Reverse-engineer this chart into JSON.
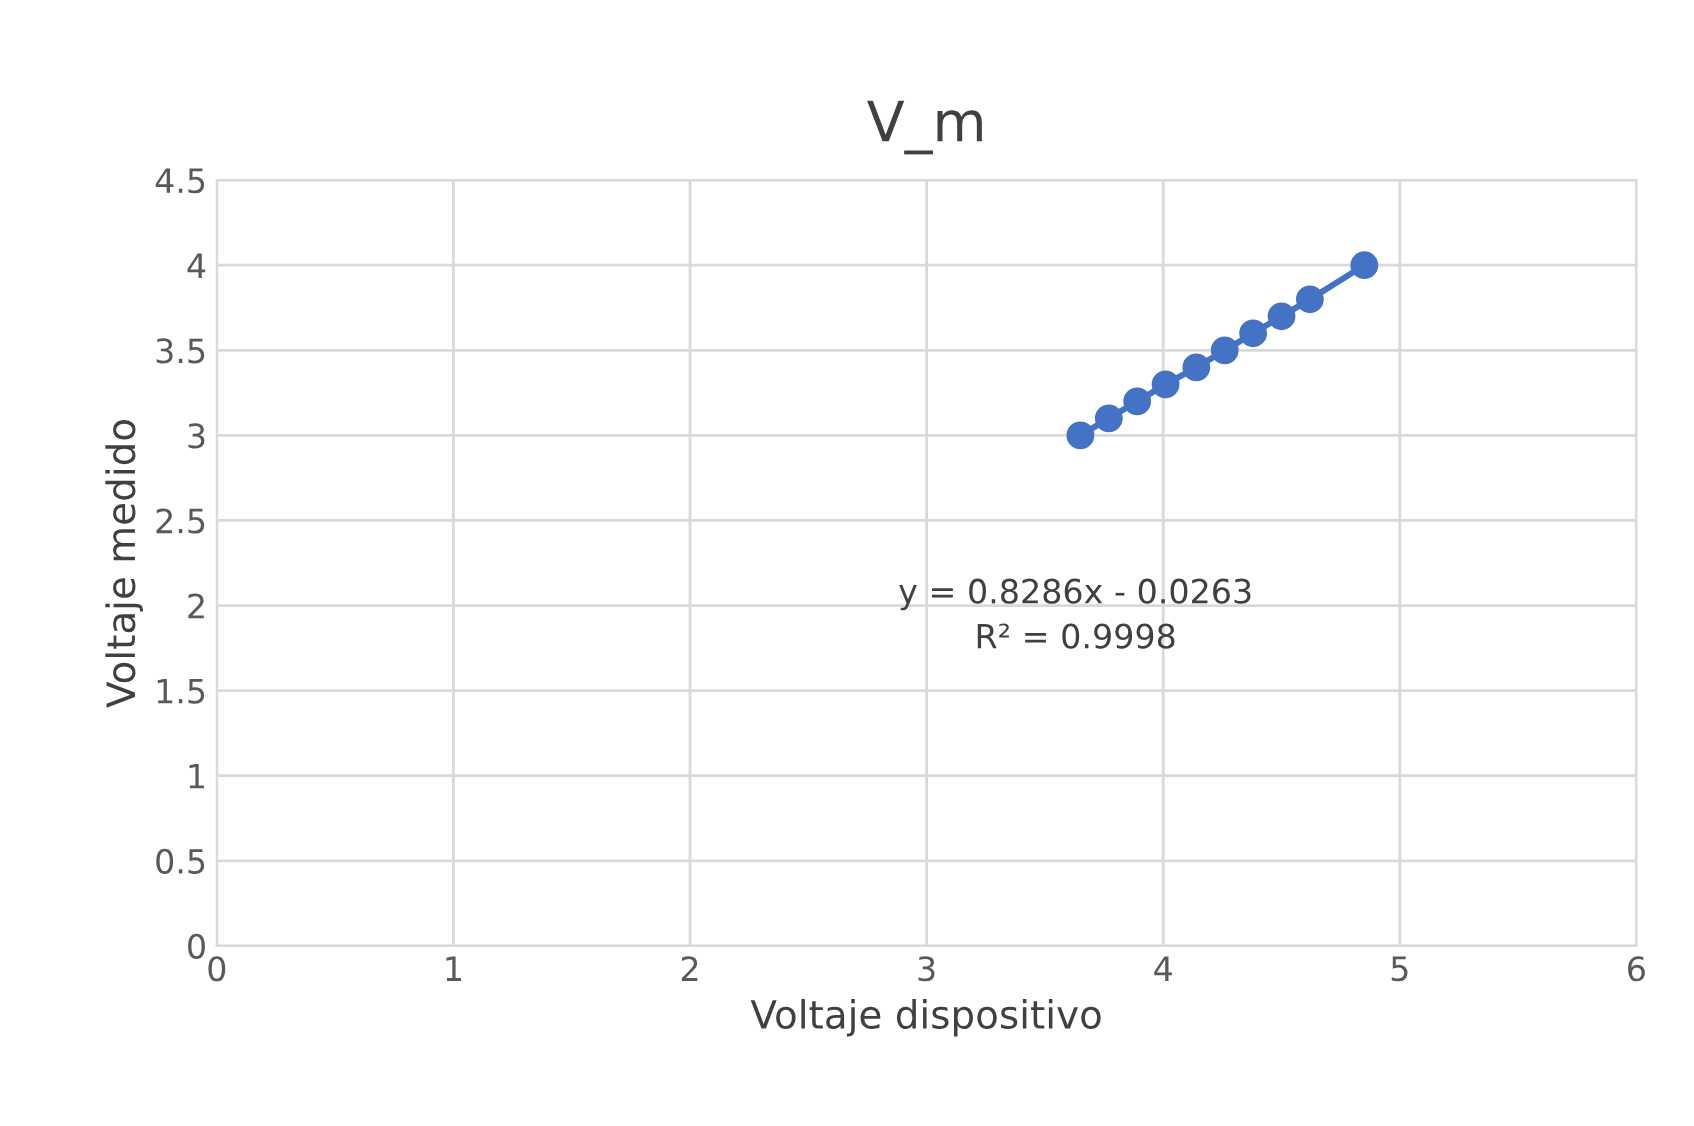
{
  "chart_data": {
    "type": "line",
    "title": "V_m",
    "xlabel": "Voltaje dispositivo",
    "ylabel": "Voltaje medido",
    "x": [
      3.65,
      3.77,
      3.89,
      4.01,
      4.14,
      4.26,
      4.38,
      4.5,
      4.62,
      4.85
    ],
    "series": [
      {
        "color": "#4472c4",
        "values": [
          3.0,
          3.1,
          3.2,
          3.3,
          3.4,
          3.5,
          3.6,
          3.7,
          3.8,
          4.0
        ]
      }
    ],
    "xlim": [
      0,
      6
    ],
    "xticks": [
      0,
      1,
      2,
      3,
      4,
      5,
      6
    ],
    "ylim": [
      0,
      4.5
    ],
    "yticks": [
      0,
      0.5,
      1,
      1.5,
      2,
      2.5,
      3,
      3.5,
      4,
      4.5
    ],
    "grid": true,
    "marker": "circle",
    "line_style": "solid",
    "annotations": [
      "y = 0.8286x - 0.0263\nR² = 0.9998"
    ]
  }
}
